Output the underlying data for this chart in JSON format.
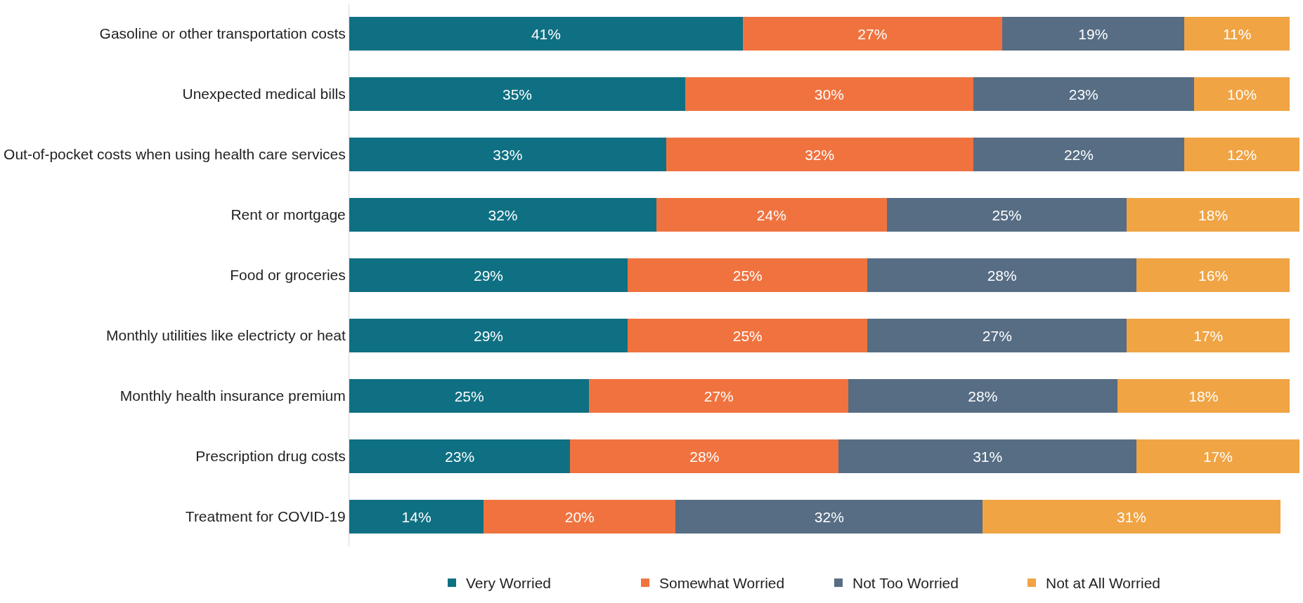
{
  "chart_data": {
    "type": "bar",
    "orientation": "horizontal",
    "stacked": true,
    "legend": "bottom",
    "categories": [
      "Gasoline or other transportation costs",
      "Unexpected medical bills",
      "Out-of-pocket costs when using health care services",
      "Rent or mortgage",
      "Food or groceries",
      "Monthly utilities like electricty or heat",
      "Monthly health insurance premium",
      "Prescription drug costs",
      "Treatment for COVID-19"
    ],
    "series": [
      {
        "name": "Very Worried",
        "color": "#0f7083",
        "values": [
          41,
          35,
          33,
          32,
          29,
          29,
          25,
          23,
          14
        ],
        "value_labels": [
          "41%",
          "35%",
          "33%",
          "32%",
          "29%",
          "29%",
          "25%",
          "23%",
          "14%"
        ]
      },
      {
        "name": "Somewhat Worried",
        "color": "#f0733f",
        "values": [
          27,
          30,
          32,
          24,
          25,
          25,
          27,
          28,
          20
        ],
        "value_labels": [
          "27%",
          "30%",
          "32%",
          "24%",
          "25%",
          "25%",
          "27%",
          "28%",
          "20%"
        ]
      },
      {
        "name": "Not Too Worried",
        "color": "#566d84",
        "values": [
          19,
          23,
          22,
          25,
          28,
          27,
          28,
          31,
          32
        ],
        "value_labels": [
          "19%",
          "23%",
          "22%",
          "25%",
          "28%",
          "27%",
          "28%",
          "31%",
          "32%"
        ]
      },
      {
        "name": "Not at All Worried",
        "color": "#f0a444",
        "values": [
          11,
          10,
          12,
          18,
          16,
          17,
          18,
          17,
          31
        ],
        "value_labels": [
          "11%",
          "10%",
          "12%",
          "18%",
          "16%",
          "17%",
          "18%",
          "17%",
          "31%"
        ]
      }
    ]
  }
}
